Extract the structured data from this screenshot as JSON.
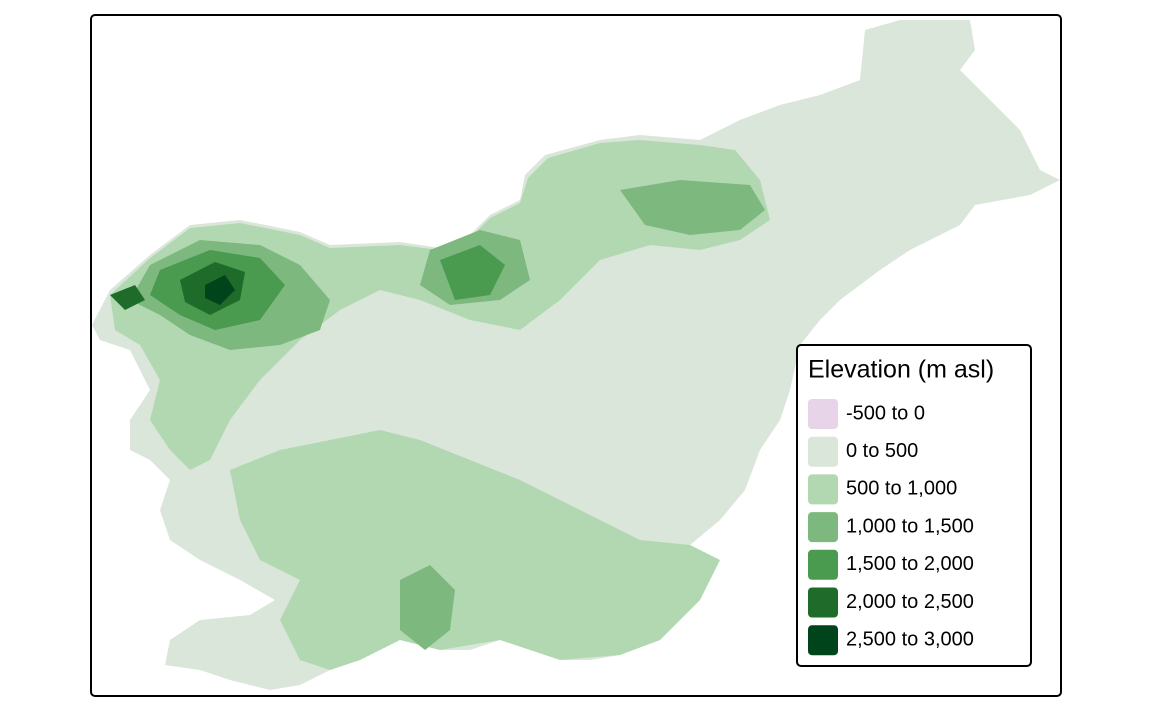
{
  "legend": {
    "title": "Elevation (m asl)",
    "items": [
      {
        "label": "-500 to 0",
        "color": "#e7d4e8"
      },
      {
        "label": "0 to 500",
        "color": "#d9e6d9"
      },
      {
        "label": "500 to 1,000",
        "color": "#b2d8b2"
      },
      {
        "label": "1,000 to 1,500",
        "color": "#7db87e"
      },
      {
        "label": "1,500 to 2,000",
        "color": "#4a9a4f"
      },
      {
        "label": "2,000 to 2,500",
        "color": "#1f6b2a"
      },
      {
        "label": "2,500 to 3,000",
        "color": "#00441b"
      }
    ]
  }
}
